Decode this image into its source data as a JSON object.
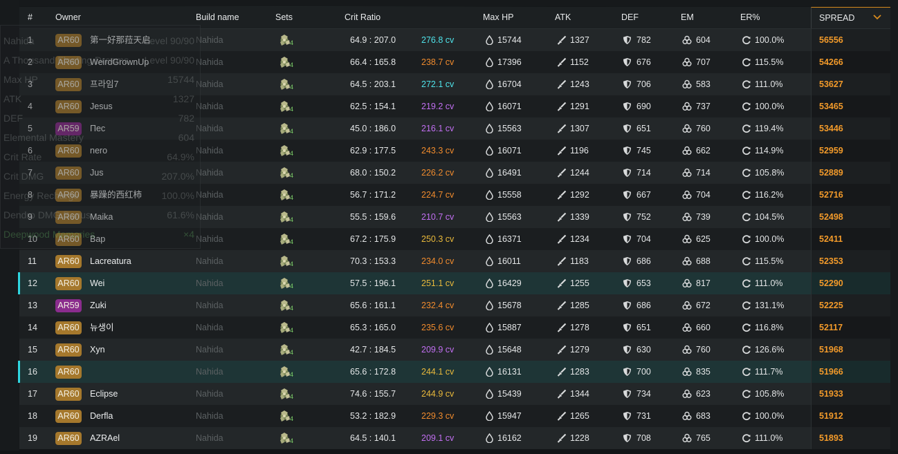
{
  "header": {
    "rank": "#",
    "owner": "Owner",
    "build": "Build name",
    "sets": "Sets",
    "crit": "Crit Ratio",
    "hp": "Max HP",
    "atk": "ATK",
    "def": "DEF",
    "em": "EM",
    "er": "ER%",
    "spread": "SPREAD"
  },
  "colors": {
    "accent": "#d98c1e",
    "highlight_marker": "#2fd6e0",
    "ar60": "#a5782c",
    "ar59": "#8a2c8d",
    "cv_cyan": "#4fe3ea",
    "cv_gold": "#e9b93b",
    "cv_orange": "#f08b2d",
    "cv_purple": "#c26ff2"
  },
  "icons": {
    "sets": "deepwood-set-icon",
    "hp": "hp-drop-icon",
    "atk": "atk-sword-icon",
    "def": "def-shield-icon",
    "em": "em-atom-icon",
    "er": "er-recharge-icon",
    "sort": "chevron-down-icon"
  },
  "ghost_panel": {
    "rows": [
      {
        "label": "Nahida",
        "value": "Level 90/90"
      },
      {
        "label": "A Thousand Floating Dreams",
        "value": "Level 90/90"
      },
      {
        "label": "Max HP",
        "value": "15744"
      },
      {
        "label": "ATK",
        "value": "1327"
      },
      {
        "label": "DEF",
        "value": "782"
      },
      {
        "label": "Elemental Mastery",
        "value": "604"
      },
      {
        "label": "Crit Rate",
        "value": "64.9%"
      },
      {
        "label": "Crit DMG",
        "value": "207.0%"
      },
      {
        "label": "Energy Recharge",
        "value": "100.0%"
      },
      {
        "label": "Dendro DMG Bonus",
        "value": "61.6%"
      },
      {
        "label": "Deepwood Memories",
        "value": "×4"
      }
    ]
  },
  "rows": [
    {
      "rank": "1",
      "ar": "AR60",
      "owner": "第一好那菈天启",
      "build": "Nahida",
      "sets": "4",
      "crit": "64.9 : 207.0",
      "cv": "276.8 cv",
      "cv_color": "cyan",
      "hp": "15744",
      "atk": "1327",
      "def": "782",
      "em": "604",
      "er": "100.0%",
      "spread": "56556",
      "highlight": false
    },
    {
      "rank": "2",
      "ar": "AR60",
      "owner": "WeirdGrownUp",
      "build": "Nahida",
      "sets": "4",
      "crit": "66.4 : 165.8",
      "cv": "238.7 cv",
      "cv_color": "orange",
      "hp": "17396",
      "atk": "1152",
      "def": "676",
      "em": "707",
      "er": "115.5%",
      "spread": "54266",
      "highlight": false
    },
    {
      "rank": "3",
      "ar": "AR60",
      "owner": "프라임7",
      "build": "Nahida",
      "sets": "4",
      "crit": "64.5 : 203.1",
      "cv": "272.1 cv",
      "cv_color": "cyan",
      "hp": "16704",
      "atk": "1243",
      "def": "706",
      "em": "583",
      "er": "111.0%",
      "spread": "53627",
      "highlight": false
    },
    {
      "rank": "4",
      "ar": "AR60",
      "owner": "Jesus",
      "build": "Nahida",
      "sets": "4",
      "crit": "62.5 : 154.1",
      "cv": "219.2 cv",
      "cv_color": "purple",
      "hp": "16071",
      "atk": "1291",
      "def": "690",
      "em": "737",
      "er": "100.0%",
      "spread": "53465",
      "highlight": false
    },
    {
      "rank": "5",
      "ar": "AR59",
      "owner": "Пес",
      "build": "Nahida",
      "sets": "4",
      "crit": "45.0 : 186.0",
      "cv": "216.1 cv",
      "cv_color": "purple",
      "hp": "15563",
      "atk": "1307",
      "def": "651",
      "em": "760",
      "er": "119.4%",
      "spread": "53446",
      "highlight": false
    },
    {
      "rank": "6",
      "ar": "AR60",
      "owner": "nero",
      "build": "Nahida",
      "sets": "4",
      "crit": "62.9 : 177.5",
      "cv": "243.3 cv",
      "cv_color": "orange",
      "hp": "16071",
      "atk": "1196",
      "def": "745",
      "em": "662",
      "er": "114.9%",
      "spread": "52959",
      "highlight": false
    },
    {
      "rank": "7",
      "ar": "AR60",
      "owner": "Jus",
      "build": "Nahida",
      "sets": "4",
      "crit": "68.0 : 150.2",
      "cv": "226.2 cv",
      "cv_color": "orange",
      "hp": "16491",
      "atk": "1244",
      "def": "714",
      "em": "714",
      "er": "105.8%",
      "spread": "52889",
      "highlight": false
    },
    {
      "rank": "8",
      "ar": "AR60",
      "owner": "暴躁的西红柿",
      "build": "Nahida",
      "sets": "4",
      "crit": "56.7 : 171.2",
      "cv": "224.7 cv",
      "cv_color": "orange",
      "hp": "15558",
      "atk": "1292",
      "def": "667",
      "em": "704",
      "er": "116.2%",
      "spread": "52716",
      "highlight": false
    },
    {
      "rank": "9",
      "ar": "AR60",
      "owner": "Maika",
      "build": "Nahida",
      "sets": "4",
      "crit": "55.5 : 159.6",
      "cv": "210.7 cv",
      "cv_color": "purple",
      "hp": "15563",
      "atk": "1339",
      "def": "752",
      "em": "739",
      "er": "104.5%",
      "spread": "52498",
      "highlight": false
    },
    {
      "rank": "10",
      "ar": "AR60",
      "owner": "Bap",
      "build": "Nahida",
      "sets": "4",
      "crit": "67.2 : 175.9",
      "cv": "250.3 cv",
      "cv_color": "gold",
      "hp": "16371",
      "atk": "1234",
      "def": "704",
      "em": "625",
      "er": "100.0%",
      "spread": "52411",
      "highlight": false
    },
    {
      "rank": "11",
      "ar": "AR60",
      "owner": "Lacreatura",
      "build": "Nahida",
      "sets": "4",
      "crit": "70.3 : 153.3",
      "cv": "234.0 cv",
      "cv_color": "orange",
      "hp": "16011",
      "atk": "1183",
      "def": "686",
      "em": "688",
      "er": "115.5%",
      "spread": "52353",
      "highlight": false
    },
    {
      "rank": "12",
      "ar": "AR60",
      "owner": "Wei",
      "build": "Nahida",
      "sets": "4",
      "crit": "57.5 : 196.1",
      "cv": "251.1 cv",
      "cv_color": "gold",
      "hp": "16429",
      "atk": "1255",
      "def": "653",
      "em": "817",
      "er": "111.0%",
      "spread": "52290",
      "highlight": true
    },
    {
      "rank": "13",
      "ar": "AR59",
      "owner": "Zuki",
      "build": "Nahida",
      "sets": "4",
      "crit": "65.6 : 161.1",
      "cv": "232.4 cv",
      "cv_color": "orange",
      "hp": "15678",
      "atk": "1285",
      "def": "686",
      "em": "672",
      "er": "131.1%",
      "spread": "52225",
      "highlight": false
    },
    {
      "rank": "14",
      "ar": "AR60",
      "owner": "뉴생이",
      "build": "Nahida",
      "sets": "4",
      "crit": "65.3 : 165.0",
      "cv": "235.6 cv",
      "cv_color": "orange",
      "hp": "15887",
      "atk": "1278",
      "def": "651",
      "em": "660",
      "er": "116.8%",
      "spread": "52117",
      "highlight": false
    },
    {
      "rank": "15",
      "ar": "AR60",
      "owner": "Xyn",
      "build": "Nahida",
      "sets": "4",
      "crit": "42.7 : 184.5",
      "cv": "209.9 cv",
      "cv_color": "purple",
      "hp": "15648",
      "atk": "1279",
      "def": "630",
      "em": "760",
      "er": "126.6%",
      "spread": "51968",
      "highlight": false
    },
    {
      "rank": "16",
      "ar": "AR60",
      "owner": "",
      "build": "Nahida",
      "sets": "4",
      "crit": "65.6 : 172.8",
      "cv": "244.1 cv",
      "cv_color": "gold",
      "hp": "16131",
      "atk": "1283",
      "def": "700",
      "em": "835",
      "er": "111.7%",
      "spread": "51966",
      "highlight": true
    },
    {
      "rank": "17",
      "ar": "AR60",
      "owner": "Eclipse",
      "build": "Nahida",
      "sets": "4",
      "crit": "74.6 : 155.7",
      "cv": "244.9 cv",
      "cv_color": "gold",
      "hp": "15439",
      "atk": "1344",
      "def": "734",
      "em": "623",
      "er": "105.8%",
      "spread": "51933",
      "highlight": false
    },
    {
      "rank": "18",
      "ar": "AR60",
      "owner": "Derfla",
      "build": "Nahida",
      "sets": "4",
      "crit": "53.2 : 182.9",
      "cv": "229.3 cv",
      "cv_color": "orange",
      "hp": "15947",
      "atk": "1265",
      "def": "731",
      "em": "683",
      "er": "100.0%",
      "spread": "51912",
      "highlight": false
    },
    {
      "rank": "19",
      "ar": "AR60",
      "owner": "AZRAel",
      "build": "Nahida",
      "sets": "4",
      "crit": "64.5 : 140.1",
      "cv": "209.1 cv",
      "cv_color": "purple",
      "hp": "16162",
      "atk": "1228",
      "def": "708",
      "em": "765",
      "er": "111.0%",
      "spread": "51893",
      "highlight": false
    }
  ]
}
